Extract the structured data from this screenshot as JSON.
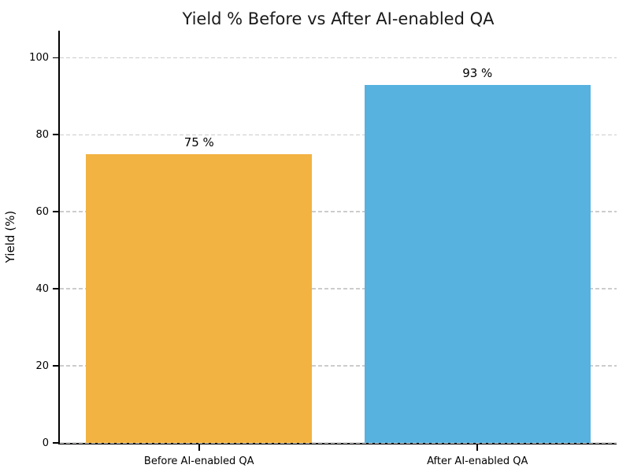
{
  "chart_data": {
    "type": "bar",
    "title": "Yield % Before vs After AI-enabled QA",
    "xlabel": "",
    "ylabel": "Yield (%)",
    "categories": [
      "Before AI-enabled QA",
      "After AI-enabled QA"
    ],
    "values": [
      75,
      93
    ],
    "bar_value_labels": [
      "75 %",
      "93 %"
    ],
    "bar_colors": [
      "#F2B342",
      "#57B2E0"
    ],
    "yticks": [
      0,
      20,
      40,
      60,
      80,
      100
    ],
    "ylim": [
      0,
      107
    ],
    "grid": "horizontal-dashed",
    "legend_position": "none",
    "colors": {
      "grid": "#CCCCCC",
      "axis": "#000000",
      "text": "#000000",
      "title_text": "#1A1A1A",
      "background": "#FFFFFF"
    }
  }
}
